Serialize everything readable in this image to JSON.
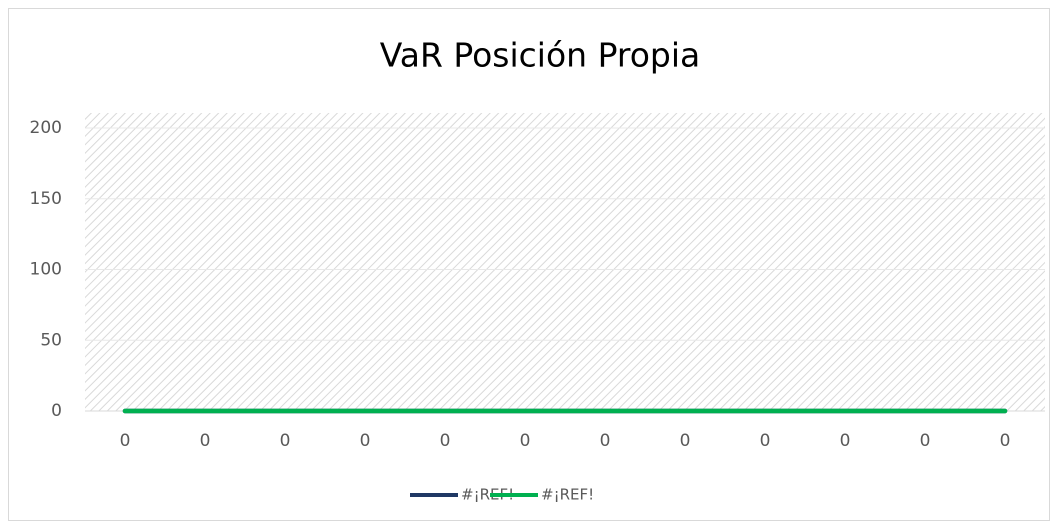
{
  "chart_data": {
    "type": "line",
    "title": "VaR Posición Propia",
    "categories": [
      "0",
      "0",
      "0",
      "0",
      "0",
      "0",
      "0",
      "0",
      "0",
      "0",
      "0",
      "0"
    ],
    "series": [
      {
        "name": "#¡REF!",
        "color": "#1f3864",
        "values": [
          0,
          0,
          0,
          0,
          0,
          0,
          0,
          0,
          0,
          0,
          0,
          0
        ]
      },
      {
        "name": "#¡REF!",
        "color": "#00b050",
        "values": [
          0,
          0,
          0,
          0,
          0,
          0,
          0,
          0,
          0,
          0,
          0,
          0
        ]
      }
    ],
    "ylim": [
      0,
      200
    ],
    "yticks": [
      0,
      50,
      100,
      150,
      200
    ],
    "grid": true,
    "legend": "bottom"
  }
}
